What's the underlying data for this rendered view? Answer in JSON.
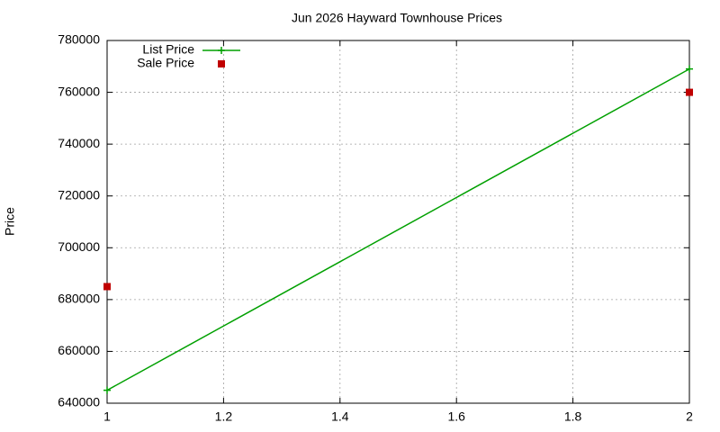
{
  "chart_data": {
    "type": "line",
    "title": "Jun 2026 Hayward Townhouse Prices",
    "y_label": "Price",
    "x": [
      1,
      2
    ],
    "series": [
      {
        "name": "List Price",
        "color": "#00a000",
        "mode": "lines+points",
        "values": [
          645000,
          769000
        ]
      },
      {
        "name": "Sale Price",
        "color": "#c00000",
        "mode": "points",
        "values": [
          685000,
          760000
        ]
      }
    ],
    "xlim": [
      1,
      2
    ],
    "xticks": [
      1,
      1.2,
      1.4,
      1.6,
      1.8,
      2
    ],
    "ylim": [
      640000,
      780000
    ],
    "yticks": [
      640000,
      660000,
      680000,
      700000,
      720000,
      740000,
      760000,
      780000
    ],
    "grid": true,
    "legend": "top-left"
  }
}
